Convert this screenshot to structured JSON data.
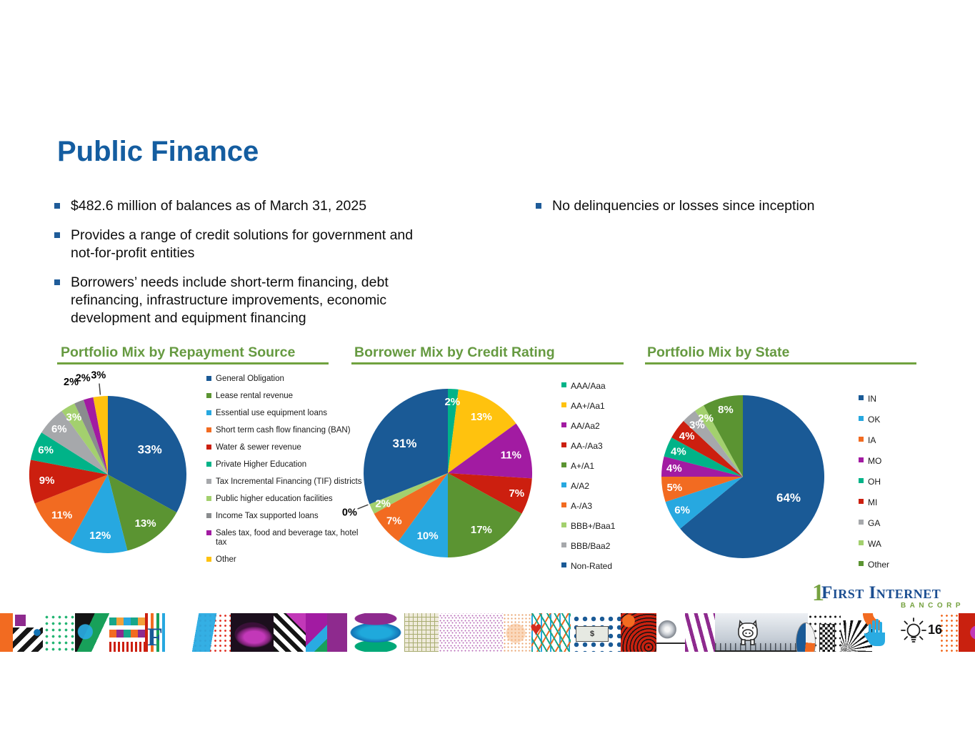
{
  "slide": {
    "title": "Public Finance",
    "page_number": "16",
    "bullets_left": [
      "$482.6 million of balances as of March 31, 2025",
      "Provides a range of credit solutions for government and not-for-profit entities",
      "Borrowers’ needs include short-term financing, debt refinancing, infrastructure improvements, economic development and equipment financing"
    ],
    "bullets_right": [
      "No delinquencies or losses since inception"
    ],
    "logo": {
      "one": "1",
      "name_caps": "First Internet",
      "sub": "BANCORP"
    }
  },
  "colors": {
    "title_blue": "#145DA0",
    "bullet_marker_blue": "#1F5C99",
    "heading_green": "#669A41",
    "underline_green": "#70A23F",
    "logo_blue": "#1B4E91",
    "logo_green": "#76A240"
  },
  "strip": {
    "letter_f": "F",
    "heart": "♥",
    "dollar": "$"
  },
  "chart_data": [
    {
      "type": "pie",
      "title": "Portfolio Mix by Repayment Source",
      "legend_position": "right",
      "slices": [
        {
          "label": "General Obligation",
          "value": 33,
          "color": "#1A5A96"
        },
        {
          "label": "Lease rental revenue",
          "value": 13,
          "color": "#5B9432"
        },
        {
          "label": "Essential use equipment loans",
          "value": 12,
          "color": "#27A8E0"
        },
        {
          "label": "Short term cash flow financing (BAN)",
          "value": 11,
          "color": "#F26B21"
        },
        {
          "label": "Water & sewer revenue",
          "value": 9,
          "color": "#CC1F0F"
        },
        {
          "label": "Private Higher Education",
          "value": 6,
          "color": "#00B388"
        },
        {
          "label": "Tax Incremental Financing (TIF) districts",
          "value": 6,
          "color": "#A6A8AB"
        },
        {
          "label": "Public higher education facilities",
          "value": 3,
          "color": "#A3D06E"
        },
        {
          "label": "Income Tax supported loans",
          "value": 2,
          "color": "#8A8C8E",
          "outside": true
        },
        {
          "label": "Sales tax, food and beverage tax, hotel tax",
          "value": 2,
          "color": "#A21BA2",
          "outside": true
        },
        {
          "label": "Other",
          "value": 3,
          "color": "#FFC20E",
          "outside": true,
          "leader": true
        }
      ]
    },
    {
      "type": "pie",
      "title": "Borrower Mix by Credit Rating",
      "legend_position": "right",
      "slices": [
        {
          "label": "AAA/Aaa",
          "value": 2,
          "color": "#00B388"
        },
        {
          "label": "AA+/Aa1",
          "value": 13,
          "color": "#FFC20E"
        },
        {
          "label": "AA/Aa2",
          "value": 11,
          "color": "#A21BA2"
        },
        {
          "label": "AA-/Aa3",
          "value": 7,
          "color": "#CC1F0F"
        },
        {
          "label": "A+/A1",
          "value": 17,
          "color": "#5B9432"
        },
        {
          "label": "A/A2",
          "value": 10,
          "color": "#27A8E0"
        },
        {
          "label": "A-/A3",
          "value": 7,
          "color": "#F26B21"
        },
        {
          "label": "BBB+/Baa1",
          "value": 2,
          "color": "#A3D06E"
        },
        {
          "label": "BBB/Baa2",
          "value": 0,
          "color": "#A6A8AB",
          "outside": true,
          "leader": true
        },
        {
          "label": "Non-Rated",
          "value": 31,
          "color": "#1A5A96"
        }
      ]
    },
    {
      "type": "pie",
      "title": "Portfolio Mix by State",
      "legend_position": "right",
      "slices": [
        {
          "label": "IN",
          "value": 64,
          "color": "#1A5A96"
        },
        {
          "label": "OK",
          "value": 6,
          "color": "#27A8E0"
        },
        {
          "label": "IA",
          "value": 5,
          "color": "#F26B21"
        },
        {
          "label": "MO",
          "value": 4,
          "color": "#A21BA2"
        },
        {
          "label": "OH",
          "value": 4,
          "color": "#00B388"
        },
        {
          "label": "MI",
          "value": 4,
          "color": "#CC1F0F"
        },
        {
          "label": "GA",
          "value": 3,
          "color": "#A6A8AB"
        },
        {
          "label": "WA",
          "value": 2,
          "color": "#A3D06E"
        },
        {
          "label": "Other",
          "value": 8,
          "color": "#5B9432"
        }
      ]
    }
  ]
}
